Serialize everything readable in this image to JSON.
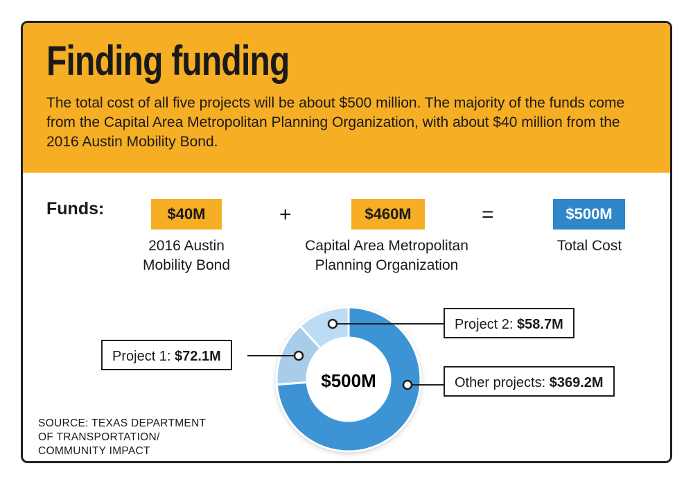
{
  "title": "Finding funding",
  "intro": "The total cost of all five projects will be about $500 million. The majority of the funds come from the Capital Area Metropolitan Planning Organization, with about $40 million from the 2016 Austin Mobility Bond.",
  "funds": {
    "label": "Funds:",
    "items": [
      {
        "amount": "$40M",
        "caption": "2016 Austin Mobility Bond",
        "color": "#f6ae24"
      },
      {
        "amount": "$460M",
        "caption": "Capital Area Metropolitan Planning Organization",
        "color": "#f6ae24"
      },
      {
        "amount": "$500M",
        "caption": "Total Cost",
        "color": "#2f86c8"
      }
    ],
    "plus": "+",
    "equals": "="
  },
  "source": [
    "SOURCE: TEXAS DEPARTMENT",
    "OF TRANSPORTATION/",
    "COMMUNITY IMPACT"
  ],
  "colors": {
    "accent": "#f6ae24",
    "blue": "#2f86c8",
    "dark_blue": "#3d94d4",
    "light_blue": "#a8cdeb",
    "lighter_blue": "#bcdcf3"
  },
  "chart_data": {
    "type": "pie",
    "center_label": "$500M",
    "slices": [
      {
        "label": "Project 1:",
        "value_label": "$72.1M",
        "value": 72.1,
        "color": "#a8cdeb"
      },
      {
        "label": "Project 2:",
        "value_label": "$58.7M",
        "value": 58.7,
        "color": "#bcdcf3"
      },
      {
        "label": "Other projects:",
        "value_label": "$369.2M",
        "value": 369.2,
        "color": "#3d94d4"
      }
    ]
  }
}
